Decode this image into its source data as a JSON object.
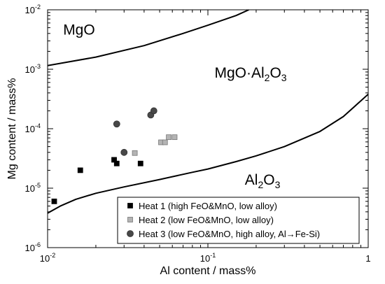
{
  "chart_data": {
    "type": "scatter",
    "title": "",
    "xlabel": "Al content / mass%",
    "ylabel": "Mg content / mass%",
    "x_scale": "log",
    "y_scale": "log",
    "xlim": [
      0.01,
      1
    ],
    "ylim": [
      1e-06,
      0.01
    ],
    "x_ticks": [
      {
        "value": 0.01,
        "base": "10",
        "exp": "-2"
      },
      {
        "value": 0.1,
        "base": "10",
        "exp": "-1"
      },
      {
        "value": 1,
        "base": "1",
        "exp": ""
      }
    ],
    "y_ticks": [
      {
        "value": 1e-06,
        "base": "10",
        "exp": "-6"
      },
      {
        "value": 1e-05,
        "base": "10",
        "exp": "-5"
      },
      {
        "value": 0.0001,
        "base": "10",
        "exp": "-4"
      },
      {
        "value": 0.001,
        "base": "10",
        "exp": "-3"
      },
      {
        "value": 0.01,
        "base": "10",
        "exp": "-2"
      }
    ],
    "regions": [
      {
        "label": "MgO",
        "anchor": [
          0.0125,
          0.0038
        ]
      },
      {
        "label": "MgO·Al",
        "sub": "2",
        "label2": "O",
        "sub2": "3",
        "anchor": [
          0.11,
          0.00072
        ]
      },
      {
        "label": "Al",
        "sub": "2",
        "label2": "O",
        "sub2": "3",
        "anchor": [
          0.17,
          1.15e-05
        ]
      }
    ],
    "boundaries": [
      {
        "name": "MgO / MgO·Al2O3",
        "points": [
          [
            0.01,
            0.00115
          ],
          [
            0.02,
            0.0016
          ],
          [
            0.04,
            0.0025
          ],
          [
            0.07,
            0.004
          ],
          [
            0.1,
            0.0055
          ],
          [
            0.15,
            0.008
          ],
          [
            0.18,
            0.01
          ]
        ]
      },
      {
        "name": "MgO·Al2O3 / Al2O3",
        "points": [
          [
            0.01,
            3.8e-06
          ],
          [
            0.012,
            5e-06
          ],
          [
            0.015,
            6.5e-06
          ],
          [
            0.02,
            8.2e-06
          ],
          [
            0.03,
            1.05e-05
          ],
          [
            0.05,
            1.4e-05
          ],
          [
            0.08,
            1.85e-05
          ],
          [
            0.1,
            2.1e-05
          ],
          [
            0.15,
            2.8e-05
          ],
          [
            0.2,
            3.5e-05
          ],
          [
            0.3,
            5e-05
          ],
          [
            0.5,
            9e-05
          ],
          [
            0.7,
            0.00016
          ],
          [
            1.0,
            0.00038
          ]
        ]
      }
    ],
    "series": [
      {
        "name": "Heat 1 (high FeO&MnO, low alloy)",
        "marker": "square",
        "color": "#000000",
        "points": [
          [
            0.011,
            6e-06
          ],
          [
            0.016,
            2e-05
          ],
          [
            0.026,
            3e-05
          ],
          [
            0.027,
            2.6e-05
          ],
          [
            0.038,
            2.6e-05
          ]
        ]
      },
      {
        "name": "Heat 2 (low FeO&MnO, low alloy)",
        "marker": "square",
        "color": "#b4b4b4",
        "points": [
          [
            0.035,
            3.9e-05
          ],
          [
            0.051,
            5.9e-05
          ],
          [
            0.054,
            5.9e-05
          ],
          [
            0.057,
            7.2e-05
          ],
          [
            0.062,
            7.2e-05
          ]
        ]
      },
      {
        "name": "Heat 3 (low FeO&MnO, high alloy, Al→Fe-Si)",
        "marker": "circle",
        "color": "#484848",
        "points": [
          [
            0.027,
            0.00012
          ],
          [
            0.03,
            4e-05
          ],
          [
            0.044,
            0.00017
          ],
          [
            0.046,
            0.0002
          ]
        ]
      }
    ],
    "legend_position": "bottom-right",
    "grid": false
  }
}
